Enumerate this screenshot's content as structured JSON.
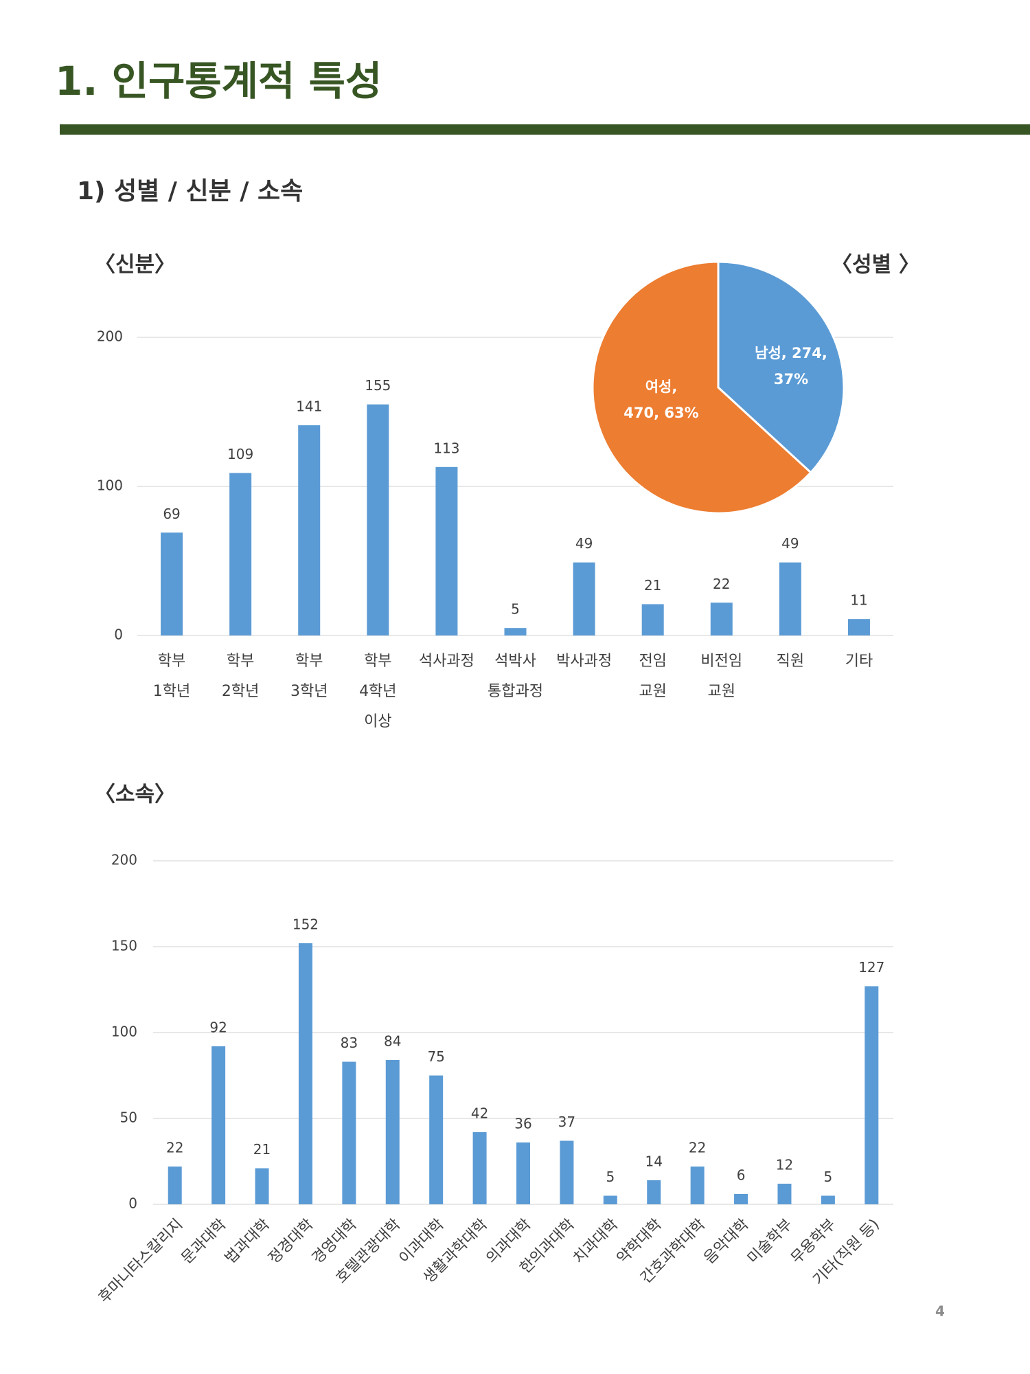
{
  "title": "1.  인구통계적 특성",
  "subtitle": "1) 성별 / 신분 / 소속",
  "page_number": "4",
  "chart_data": [
    {
      "type": "bar",
      "title": "〈신분〉",
      "categories": [
        [
          "학부",
          "1학년"
        ],
        [
          "학부",
          "2학년"
        ],
        [
          "학부",
          "3학년"
        ],
        [
          "학부",
          "4학년",
          "이상"
        ],
        [
          "석사과정"
        ],
        [
          "석박사",
          "통합과정"
        ],
        [
          "박사과정"
        ],
        [
          "전임",
          "교원"
        ],
        [
          "비전임",
          "교원"
        ],
        [
          "직원"
        ],
        [
          "기타"
        ]
      ],
      "values": [
        69,
        109,
        141,
        155,
        113,
        5,
        49,
        21,
        22,
        49,
        11
      ],
      "color": "#5b9bd5",
      "ylim": [
        0,
        200
      ],
      "yticks": [
        0,
        100,
        200
      ],
      "grid": true
    },
    {
      "type": "pie",
      "title": "〈성별 〉",
      "values": [
        274,
        470
      ],
      "value_labels": [
        [
          "남성, 274,",
          "37%"
        ],
        [
          "여성,",
          "470, 63%"
        ]
      ],
      "colors": [
        "#5b9bd5",
        "#ed7d31"
      ]
    },
    {
      "type": "bar",
      "title": "〈소속〉",
      "categories": [
        "후마니타스칼리지",
        "문과대학",
        "법과대학",
        "정경대학",
        "경영대학",
        "호텔관광대학",
        "이과대학",
        "생활과학대학",
        "의과대학",
        "한의과대학",
        "치과대학",
        "약학대학",
        "간호과학대학",
        "음악대학",
        "미술학부",
        "무용학부",
        "기타(직원 등)"
      ],
      "values": [
        22,
        92,
        21,
        152,
        83,
        84,
        75,
        42,
        36,
        37,
        5,
        14,
        22,
        6,
        12,
        5,
        127
      ],
      "color": "#5b9bd5",
      "ylim": [
        0,
        200
      ],
      "yticks": [
        0,
        50,
        100,
        150,
        200
      ],
      "grid": true
    }
  ]
}
